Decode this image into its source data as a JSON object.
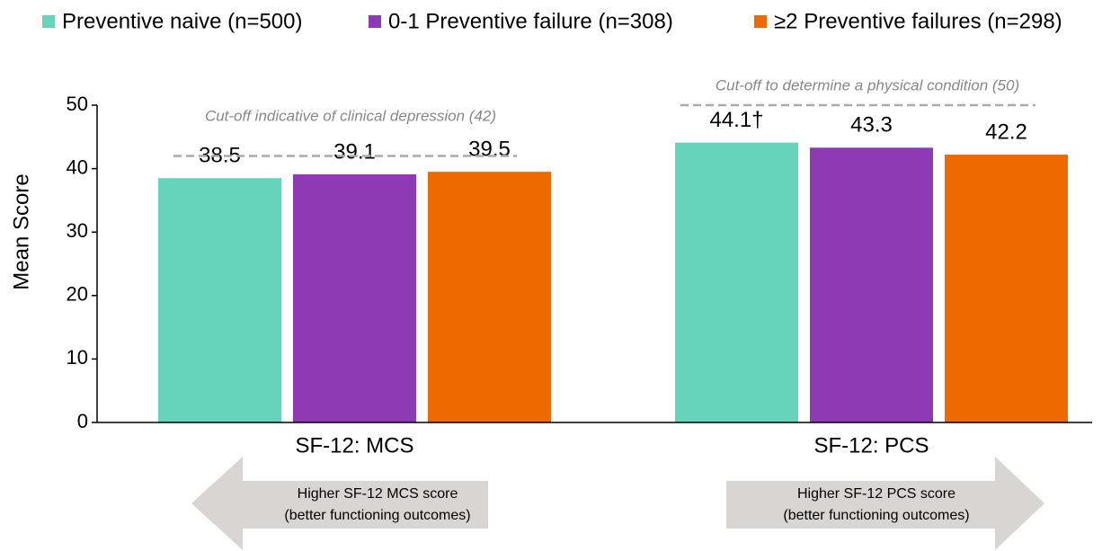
{
  "chart_data": {
    "type": "bar",
    "categories": [
      "SF-12: MCS",
      "SF-12: PCS"
    ],
    "series": [
      {
        "name": "Preventive naive (n=500)",
        "color": "#65d4bb",
        "values": [
          38.5,
          44.1
        ],
        "value_labels": [
          "38.5",
          "44.1†"
        ]
      },
      {
        "name": "0-1 Preventive failure (n=308)",
        "color": "#8e3ab5",
        "values": [
          39.1,
          43.3
        ]
      },
      {
        "name": "≥2 Preventive failures (n=298)",
        "color": "#ee6a00",
        "values": [
          39.5,
          42.2
        ]
      }
    ],
    "y_label": "Mean Score",
    "ylim": [
      0,
      50
    ],
    "yticks": [
      0,
      10,
      20,
      30,
      40,
      50
    ],
    "reference_lines": [
      {
        "value": 42,
        "label": "Cut-off indicative of clinical depression (42)"
      },
      {
        "value": 50,
        "label": "Cut-off to determine a physical condition (50)"
      }
    ],
    "arrows": [
      {
        "direction": "left",
        "lines": [
          "Higher SF-12 MCS score",
          "(better functioning outcomes)"
        ]
      },
      {
        "direction": "right",
        "lines": [
          "Higher SF-12 PCS score",
          "(better functioning outcomes)"
        ]
      }
    ]
  }
}
